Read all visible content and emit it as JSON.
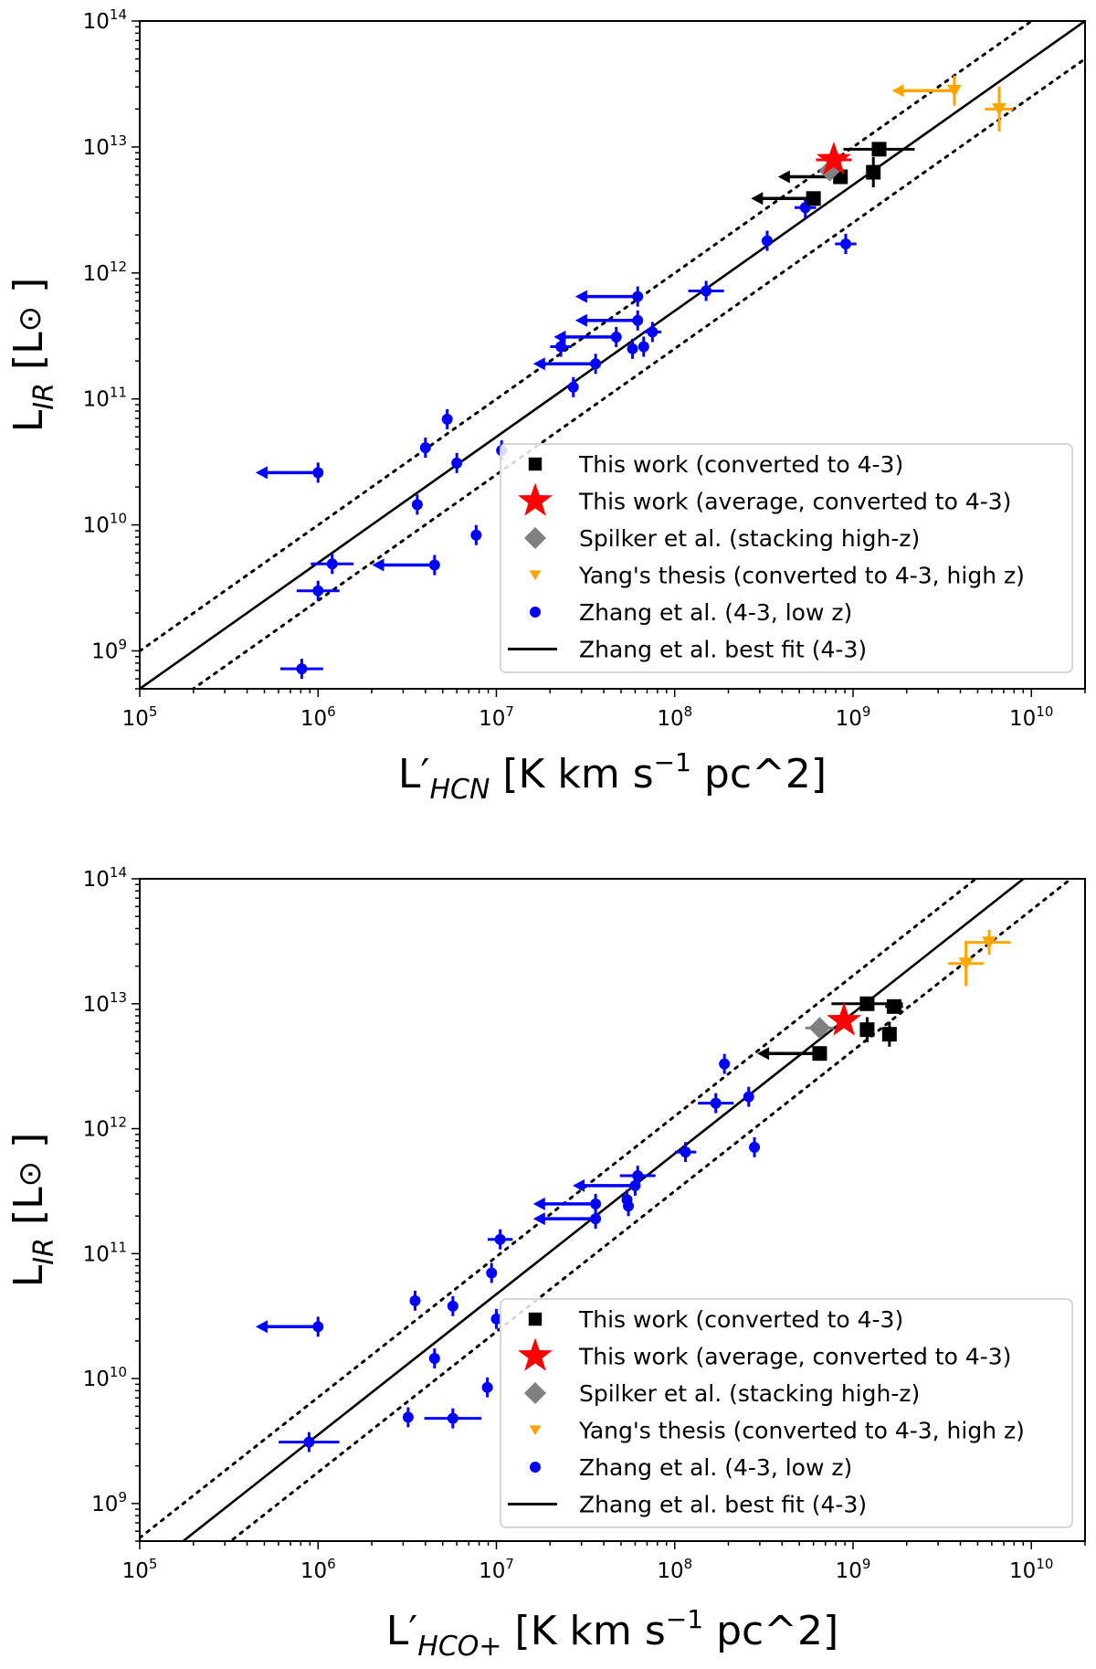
{
  "chart_data": [
    {
      "type": "scatter",
      "xscale": "log",
      "yscale": "log",
      "xlim": [
        100000.0,
        20000000000.0
      ],
      "ylim": [
        500000000.0,
        100000000000000.0
      ],
      "xticks": [
        5,
        6,
        7,
        8,
        9,
        10
      ],
      "yticks": [
        9,
        10,
        11,
        12,
        13,
        14
      ],
      "tick_base": "10",
      "xlabel": {
        "main": "L",
        "prime": "′",
        "sub": "HCN",
        "rest": " [K km s",
        "sup": "−1",
        "tail": " pc^2]"
      },
      "ylabel": {
        "main": "L",
        "sub": "IR",
        "rest": " [L",
        "sun": "⊙",
        "tail": " ]"
      },
      "legend_position": "lower-right",
      "fit": {
        "label": "Zhang et al. best fit (4-3)",
        "intercept_log": 3.699,
        "slope": 1.0,
        "dotted_offset_dex": 0.3
      },
      "series": [
        {
          "name": "This work (converted to 4-3)",
          "marker": "square",
          "color": "#000000",
          "points": [
            {
              "x": 600000000.0,
              "y": 3900000000000.0,
              "upper_limit": true
            },
            {
              "x": 850000000.0,
              "y": 5800000000000.0,
              "upper_limit": true
            },
            {
              "x": 1400000000.0,
              "y": 9600000000000.0,
              "xerr_dex": 0.2
            },
            {
              "x": 1300000000.0,
              "y": 6300000000000.0,
              "yerr_dex": 0.12
            }
          ]
        },
        {
          "name": "This work (average, converted to 4-3)",
          "marker": "star",
          "color": "#ff0000",
          "points": [
            {
              "x": 780000000.0,
              "y": 7900000000000.0,
              "xerr_dex": 0.1
            }
          ]
        },
        {
          "name": "Spilker et al. (stacking high-z)",
          "marker": "diamond",
          "color": "#808080",
          "points": [
            {
              "x": 740000000.0,
              "y": 6500000000000.0
            }
          ]
        },
        {
          "name": "Yang's thesis (converted to 4-3, high z)",
          "marker": "triangle-down",
          "color": "#ffa500",
          "points": [
            {
              "x": 3700000000.0,
              "y": 28000000000000.0,
              "upper_limit": true,
              "yerr_dex": 0.12
            },
            {
              "x": 6600000000.0,
              "y": 20000000000000.0,
              "xerr_dex": 0.08,
              "yerr_dex": 0.18
            }
          ]
        },
        {
          "name": "Zhang et al. (4-3, low z)",
          "marker": "circle",
          "color": "#0000ff",
          "points": [
            {
              "x": 1000000.0,
              "y": 26000000000.0,
              "upper_limit": true
            },
            {
              "x": 810000.0,
              "y": 720000000.0,
              "xerr_dex": 0.12
            },
            {
              "x": 1000000.0,
              "y": 3000000000.0,
              "xerr_dex": 0.12
            },
            {
              "x": 1200000.0,
              "y": 4900000000.0,
              "xerr_dex": 0.12
            },
            {
              "x": 4500000.0,
              "y": 4800000000.0,
              "upper_limit": true
            },
            {
              "x": 3600000.0,
              "y": 14500000000.0
            },
            {
              "x": 4000000.0,
              "y": 41000000000.0
            },
            {
              "x": 5300000.0,
              "y": 69000000000.0
            },
            {
              "x": 6000000.0,
              "y": 31000000000.0
            },
            {
              "x": 7700000.0,
              "y": 8300000000.0
            },
            {
              "x": 10700000.0,
              "y": 39000000000.0
            },
            {
              "x": 27000000.0,
              "y": 124000000000.0
            },
            {
              "x": 36000000.0,
              "y": 190000000000.0,
              "upper_limit": true
            },
            {
              "x": 23000000.0,
              "y": 260000000000.0,
              "xerr_dex": 0.06
            },
            {
              "x": 47000000.0,
              "y": 310000000000.0,
              "upper_limit": true
            },
            {
              "x": 62000000.0,
              "y": 420000000000.0,
              "upper_limit": true
            },
            {
              "x": 62000000.0,
              "y": 650000000000.0,
              "upper_limit": true
            },
            {
              "x": 58000000.0,
              "y": 250000000000.0
            },
            {
              "x": 67000000.0,
              "y": 260000000000.0
            },
            {
              "x": 75000000.0,
              "y": 340000000000.0,
              "xerr_dex": 0.05
            },
            {
              "x": 150000000.0,
              "y": 720000000000.0,
              "xerr_dex": 0.1
            },
            {
              "x": 330000000.0,
              "y": 1800000000000.0
            },
            {
              "x": 910000000.0,
              "y": 1700000000000.0,
              "xerr_dex": 0.06
            },
            {
              "x": 540000000.0,
              "y": 3300000000000.0,
              "xerr_dex": 0.06
            }
          ]
        }
      ]
    },
    {
      "type": "scatter",
      "xscale": "log",
      "yscale": "log",
      "xlim": [
        100000.0,
        20000000000.0
      ],
      "ylim": [
        500000000.0,
        100000000000000.0
      ],
      "xticks": [
        5,
        6,
        7,
        8,
        9,
        10
      ],
      "yticks": [
        9,
        10,
        11,
        12,
        13,
        14
      ],
      "tick_base": "10",
      "xlabel": {
        "main": "L",
        "prime": "′",
        "sub": "HCO+",
        "rest": " [K km s",
        "sup": "−1",
        "tail": " pc^2]"
      },
      "ylabel": {
        "main": "L",
        "sub": "IR",
        "rest": " [L",
        "sun": "⊙",
        "tail": " ]"
      },
      "legend_position": "lower-right",
      "fit": {
        "label": "Zhang et al. best fit (4-3)",
        "intercept_log": 2.8,
        "slope": 1.125,
        "dotted_offset_dex": 0.3
      },
      "series": [
        {
          "name": "This work (converted to 4-3)",
          "marker": "square",
          "color": "#000000",
          "points": [
            {
              "x": 650000000.0,
              "y": 4000000000000.0,
              "upper_limit": true
            },
            {
              "x": 1200000000.0,
              "y": 10000000000000.0,
              "xerr_dex": 0.2
            },
            {
              "x": 1700000000.0,
              "y": 9500000000000.0,
              "xerr_dex": 0.05
            },
            {
              "x": 1200000000.0,
              "y": 6200000000000.0,
              "yerr_dex": 0.1
            },
            {
              "x": 1600000000.0,
              "y": 5700000000000.0,
              "yerr_dex": 0.1
            }
          ]
        },
        {
          "name": "This work (average, converted to 4-3)",
          "marker": "star",
          "color": "#ff0000",
          "points": [
            {
              "x": 890000000.0,
              "y": 7300000000000.0
            }
          ]
        },
        {
          "name": "Spilker et al. (stacking high-z)",
          "marker": "diamond",
          "color": "#808080",
          "points": [
            {
              "x": 650000000.0,
              "y": 6400000000000.0,
              "xerr_dex": 0.08
            }
          ]
        },
        {
          "name": "Yang's thesis (converted to 4-3, high z)",
          "marker": "triangle-down",
          "color": "#ffa500",
          "points": [
            {
              "x": 5800000000.0,
              "y": 31000000000000.0,
              "xerr_dex": 0.12,
              "yerr_dex": 0.1
            },
            {
              "x": 4300000000.0,
              "y": 21000000000000.0,
              "xerr_dex": 0.1,
              "yerr_dex": 0.18
            }
          ]
        },
        {
          "name": "Zhang et al. (4-3, low z)",
          "marker": "circle",
          "color": "#0000ff",
          "points": [
            {
              "x": 1000000.0,
              "y": 26000000000.0,
              "upper_limit": true
            },
            {
              "x": 890000.0,
              "y": 3100000000.0,
              "xerr_dex": 0.17
            },
            {
              "x": 3200000.0,
              "y": 4900000000.0
            },
            {
              "x": 5700000.0,
              "y": 4800000000.0,
              "xerr_dex": 0.16
            },
            {
              "x": 8900000.0,
              "y": 8500000000.0
            },
            {
              "x": 4500000.0,
              "y": 14500000000.0
            },
            {
              "x": 3500000.0,
              "y": 42000000000.0
            },
            {
              "x": 5700000.0,
              "y": 38000000000.0
            },
            {
              "x": 9400000.0,
              "y": 70000000000.0
            },
            {
              "x": 10000000.0,
              "y": 30000000000.0
            },
            {
              "x": 10500000.0,
              "y": 130000000000.0,
              "xerr_dex": 0.07
            },
            {
              "x": 36000000.0,
              "y": 190000000000.0,
              "upper_limit": true
            },
            {
              "x": 36000000.0,
              "y": 250000000000.0,
              "upper_limit": true
            },
            {
              "x": 60000000.0,
              "y": 350000000000.0,
              "upper_limit": true
            },
            {
              "x": 54000000.0,
              "y": 270000000000.0
            },
            {
              "x": 55000000.0,
              "y": 240000000000.0
            },
            {
              "x": 62000000.0,
              "y": 420000000000.0,
              "xerr_dex": 0.1
            },
            {
              "x": 115000000.0,
              "y": 650000000000.0,
              "xerr_dex": 0.06
            },
            {
              "x": 170000000.0,
              "y": 1600000000000.0,
              "xerr_dex": 0.1
            },
            {
              "x": 190000000.0,
              "y": 3300000000000.0
            },
            {
              "x": 260000000.0,
              "y": 1800000000000.0
            },
            {
              "x": 280000000.0,
              "y": 710000000000.0
            }
          ]
        }
      ]
    }
  ]
}
